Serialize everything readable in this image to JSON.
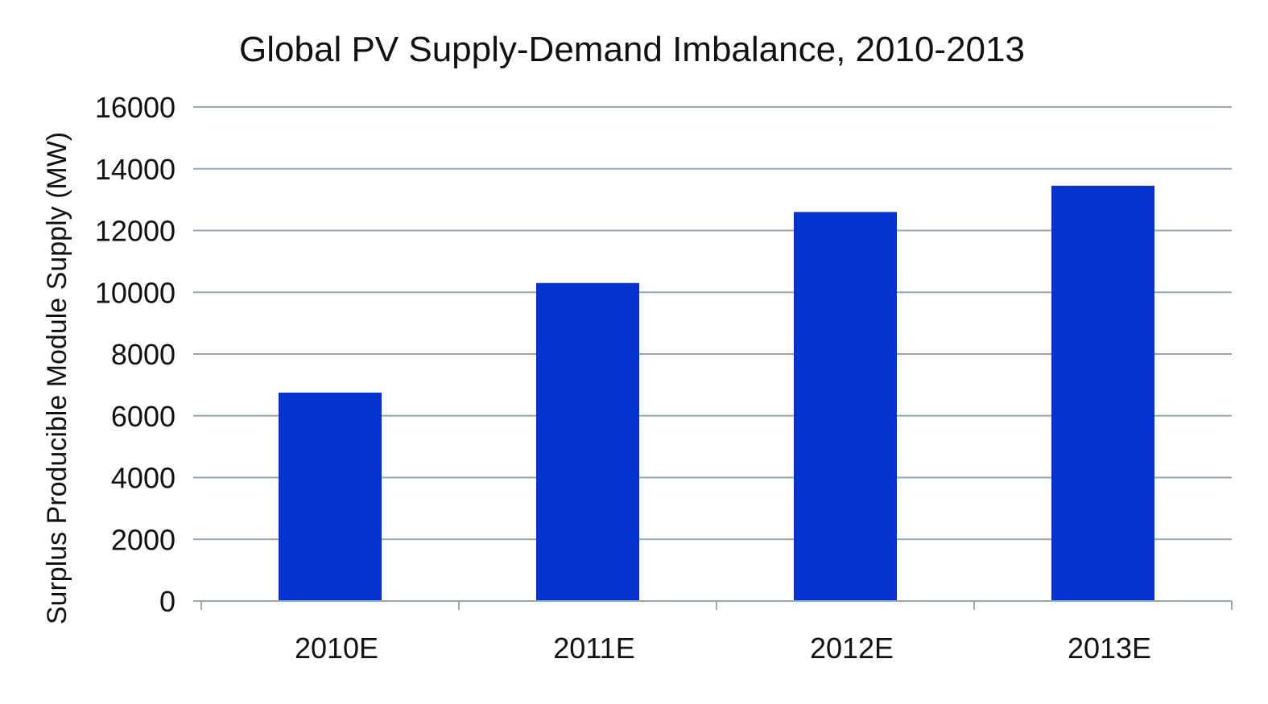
{
  "colors": {
    "bar": "#0433CF",
    "grid": "#9AA7AD",
    "text": "#111111",
    "background": "#ffffff"
  },
  "chart_data": {
    "type": "bar",
    "title": "Global PV Supply-Demand Imbalance, 2010-2013",
    "xlabel": "",
    "ylabel": "Surplus Producible Module Supply (MW)",
    "categories": [
      "2010E",
      "2011E",
      "2012E",
      "2013E"
    ],
    "values": [
      6750,
      10300,
      12600,
      13450
    ],
    "ylim": [
      0,
      16000
    ],
    "yticks": [
      0,
      2000,
      4000,
      6000,
      8000,
      10000,
      12000,
      14000,
      16000
    ],
    "ytick_labels": [
      "0",
      "2000",
      "4000",
      "6000",
      "8000",
      "10000",
      "12000",
      "14000",
      "16000"
    ],
    "grid": true,
    "legend": "none"
  }
}
